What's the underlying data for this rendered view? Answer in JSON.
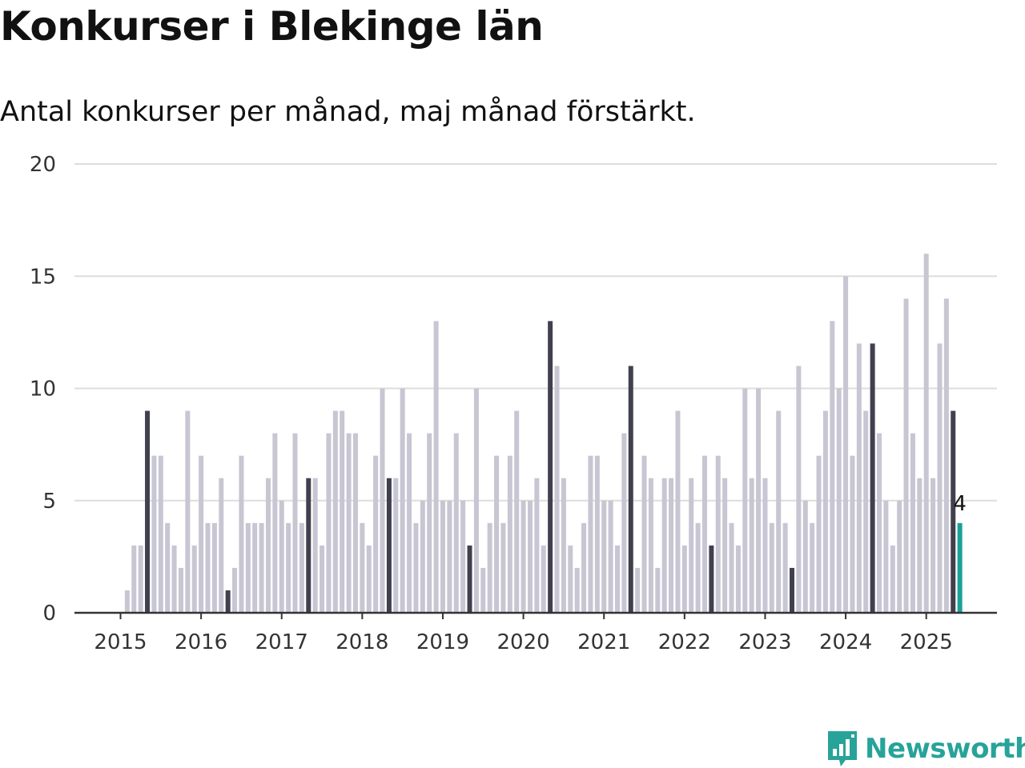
{
  "title": "Konkurser i Blekinge län",
  "subtitle": "Antal konkurser per månad, maj månad förstärkt.",
  "brand": {
    "name": "Newsworthy",
    "icon": "newsworthy-logo-icon",
    "color": "#27a39a"
  },
  "colors": {
    "default_bar": "#c7c6d2",
    "highlight_bar": "#41404f",
    "latest_bar": "#1aa198",
    "gridline": "#dddddd",
    "axis": "#333333"
  },
  "chart_data": {
    "type": "bar",
    "title": "Konkurser i Blekinge län",
    "subtitle": "Antal konkurser per månad, maj månad förstärkt.",
    "xlabel": "",
    "ylabel": "",
    "ylim": [
      0,
      20
    ],
    "yticks": [
      0,
      5,
      10,
      15,
      20
    ],
    "xticks": [
      "2015",
      "2016",
      "2017",
      "2018",
      "2019",
      "2020",
      "2021",
      "2022",
      "2023",
      "2024",
      "2025"
    ],
    "grid": true,
    "start_month": "2015-01",
    "highlight_month": "maj",
    "latest_label": "4",
    "values": [
      0,
      1,
      3,
      3,
      9,
      7,
      7,
      4,
      3,
      2,
      9,
      3,
      7,
      4,
      4,
      6,
      1,
      2,
      7,
      4,
      4,
      4,
      6,
      8,
      5,
      4,
      8,
      4,
      6,
      6,
      3,
      8,
      9,
      9,
      8,
      8,
      4,
      3,
      7,
      10,
      6,
      6,
      10,
      8,
      4,
      5,
      8,
      13,
      5,
      5,
      8,
      5,
      3,
      10,
      2,
      4,
      7,
      4,
      7,
      9,
      5,
      5,
      6,
      3,
      13,
      11,
      6,
      3,
      2,
      4,
      7,
      7,
      5,
      5,
      3,
      8,
      11,
      2,
      7,
      6,
      2,
      6,
      6,
      9,
      3,
      6,
      4,
      7,
      3,
      7,
      6,
      4,
      3,
      10,
      6,
      10,
      6,
      4,
      9,
      4,
      2,
      11,
      5,
      4,
      7,
      9,
      13,
      10,
      15,
      7,
      12,
      9,
      12,
      8,
      5,
      3,
      5,
      14,
      8,
      6,
      16,
      6,
      12,
      14,
      9,
      4
    ]
  }
}
